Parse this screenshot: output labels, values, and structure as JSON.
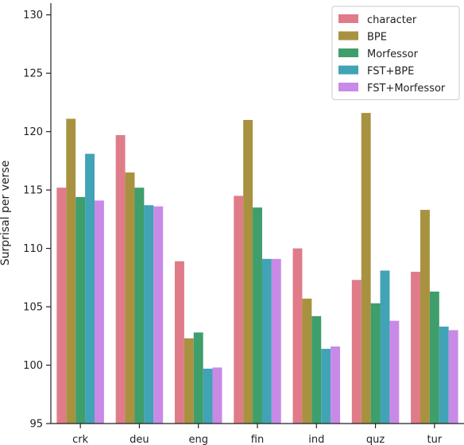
{
  "chart_data": {
    "type": "bar",
    "categories": [
      "crk",
      "deu",
      "eng",
      "fin",
      "ind",
      "quz",
      "tur"
    ],
    "series": [
      {
        "name": "character",
        "color": "#e07b8a",
        "values": [
          115.2,
          119.7,
          108.9,
          114.5,
          110.0,
          107.3,
          108.0
        ]
      },
      {
        "name": "BPE",
        "color": "#a89240",
        "values": [
          121.1,
          116.5,
          102.3,
          121.0,
          105.7,
          121.6,
          113.3
        ]
      },
      {
        "name": "Morfessor",
        "color": "#3e9e6c",
        "values": [
          114.4,
          115.2,
          102.8,
          113.5,
          104.2,
          105.3,
          106.3
        ]
      },
      {
        "name": "FST+BPE",
        "color": "#41a3b6",
        "values": [
          118.1,
          113.7,
          99.7,
          109.1,
          101.4,
          108.1,
          103.3
        ]
      },
      {
        "name": "FST+Morfessor",
        "color": "#c88ae6",
        "values": [
          114.1,
          113.6,
          99.8,
          109.1,
          101.6,
          103.8,
          103.0
        ]
      }
    ],
    "xlabel": "",
    "ylabel": "Surprisal per verse",
    "ylim": [
      95,
      131
    ],
    "yticks": [
      95,
      100,
      105,
      110,
      115,
      120,
      125,
      130
    ],
    "grid": false,
    "legend_position": "top-right"
  }
}
